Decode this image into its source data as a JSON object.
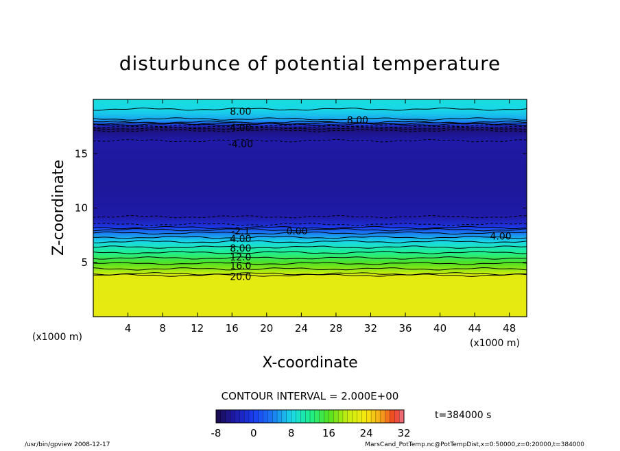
{
  "chart_data": {
    "type": "heatmap",
    "title": "disturbunce of potential temperature",
    "xlabel": "X-coordinate",
    "ylabel": "Z-coordinate",
    "x_unit": "(x1000 m)",
    "z_unit": "(x1000 m)",
    "xlim": [
      0,
      50
    ],
    "ylim": [
      0,
      20
    ],
    "x_ticks": [
      4,
      8,
      12,
      16,
      20,
      24,
      28,
      32,
      36,
      40,
      44,
      48
    ],
    "y_ticks": [
      5,
      10,
      15
    ],
    "contour_interval_text": "CONTOUR INTERVAL = 2.000E+00",
    "time_text": "t=384000 s",
    "colorbar": {
      "min": -8,
      "max": 32,
      "ticks": [
        "-8",
        "0",
        "8",
        "16",
        "24",
        "32"
      ]
    },
    "contour_labels": [
      {
        "text": "8.00",
        "x": 17,
        "z": 18.9
      },
      {
        "text": "8.00",
        "x": 30.5,
        "z": 18.1
      },
      {
        "text": "4.00",
        "x": 17,
        "z": 17.4
      },
      {
        "text": "-4.00",
        "x": 17,
        "z": 15.9
      },
      {
        "text": "-2.1",
        "x": 17,
        "z": 7.9
      },
      {
        "text": "0.00",
        "x": 23.5,
        "z": 7.9
      },
      {
        "text": "4.00",
        "x": 17,
        "z": 7.2
      },
      {
        "text": "8.00",
        "x": 17,
        "z": 6.3
      },
      {
        "text": "12.0",
        "x": 17,
        "z": 5.5
      },
      {
        "text": "16.0",
        "x": 17,
        "z": 4.7
      },
      {
        "text": "20.0",
        "x": 17,
        "z": 3.7
      },
      {
        "text": "4.00",
        "x": 47,
        "z": 7.4
      }
    ],
    "vertical_profile": [
      {
        "z": 0.0,
        "value": 22.6
      },
      {
        "z": 3.8,
        "value": 22.2
      },
      {
        "z": 3.95,
        "value": 20.0
      },
      {
        "z": 4.4,
        "value": 18.0
      },
      {
        "z": 4.9,
        "value": 16.0
      },
      {
        "z": 5.4,
        "value": 14.0
      },
      {
        "z": 5.9,
        "value": 12.0
      },
      {
        "z": 6.4,
        "value": 10.0
      },
      {
        "z": 6.9,
        "value": 8.0
      },
      {
        "z": 7.3,
        "value": 6.0
      },
      {
        "z": 7.7,
        "value": 4.0
      },
      {
        "z": 8.0,
        "value": 2.0
      },
      {
        "z": 8.2,
        "value": 0.0
      },
      {
        "z": 8.5,
        "value": -2.0
      },
      {
        "z": 9.2,
        "value": -4.0
      },
      {
        "z": 12.0,
        "value": -4.6
      },
      {
        "z": 15.5,
        "value": -4.2
      },
      {
        "z": 16.2,
        "value": -4.0
      },
      {
        "z": 16.8,
        "value": -5.0
      },
      {
        "z": 17.3,
        "value": -6.5
      },
      {
        "z": 17.6,
        "value": -2.0
      },
      {
        "z": 17.9,
        "value": 4.0
      },
      {
        "z": 18.2,
        "value": 6.0
      },
      {
        "z": 18.6,
        "value": 7.0
      },
      {
        "z": 19.1,
        "value": 8.0
      },
      {
        "z": 20.0,
        "value": 8.6
      }
    ]
  },
  "footer": {
    "left": "/usr/bin/gpview   2008-12-17",
    "right": "MarsCand_PotTemp.nc@PotTempDist,x=0:50000,z=0:20000,t=384000"
  }
}
